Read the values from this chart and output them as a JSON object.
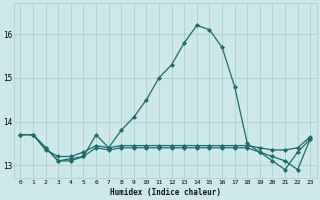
{
  "title": "",
  "xlabel": "Humidex (Indice chaleur)",
  "ylabel": "",
  "background_color": "#cce8e8",
  "grid_color": "#aacccc",
  "line_color": "#1a6b6b",
  "x_values": [
    0,
    1,
    2,
    3,
    4,
    5,
    6,
    7,
    8,
    9,
    10,
    11,
    12,
    13,
    14,
    15,
    16,
    17,
    18,
    19,
    20,
    21,
    22,
    23
  ],
  "series1": [
    13.7,
    13.7,
    13.4,
    13.1,
    13.1,
    13.2,
    13.7,
    13.4,
    13.8,
    14.1,
    14.5,
    15.0,
    15.3,
    15.8,
    16.2,
    16.1,
    15.7,
    14.8,
    13.5,
    13.3,
    13.2,
    13.1,
    12.9,
    13.6
  ],
  "series2": [
    13.7,
    13.7,
    13.35,
    13.2,
    13.2,
    13.3,
    13.45,
    13.4,
    13.45,
    13.45,
    13.45,
    13.45,
    13.45,
    13.45,
    13.45,
    13.45,
    13.45,
    13.45,
    13.45,
    13.4,
    13.35,
    13.35,
    13.4,
    13.65
  ],
  "series3": [
    13.7,
    13.7,
    13.4,
    13.1,
    13.15,
    13.2,
    13.4,
    13.35,
    13.4,
    13.4,
    13.4,
    13.4,
    13.4,
    13.4,
    13.4,
    13.4,
    13.4,
    13.4,
    13.4,
    13.3,
    13.1,
    12.9,
    13.3,
    13.6
  ],
  "ylim": [
    12.7,
    16.7
  ],
  "yticks": [
    13,
    14,
    15,
    16
  ],
  "xticks": [
    0,
    1,
    2,
    3,
    4,
    5,
    6,
    7,
    8,
    9,
    10,
    11,
    12,
    13,
    14,
    15,
    16,
    17,
    18,
    19,
    20,
    21,
    22,
    23
  ],
  "marker": "D",
  "markersize": 2.0,
  "linewidth": 0.9
}
